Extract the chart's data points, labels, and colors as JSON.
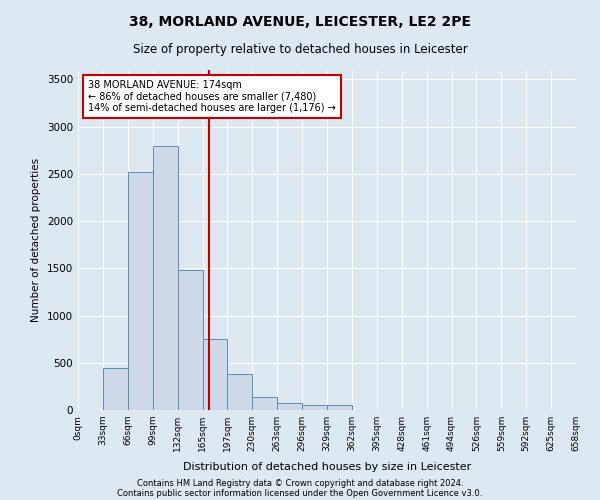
{
  "title1": "38, MORLAND AVENUE, LEICESTER, LE2 2PE",
  "title2": "Size of property relative to detached houses in Leicester",
  "xlabel": "Distribution of detached houses by size in Leicester",
  "ylabel": "Number of detached properties",
  "bar_values": [
    0,
    450,
    2520,
    2800,
    1480,
    750,
    380,
    140,
    70,
    50,
    50,
    0,
    0,
    0,
    0,
    0,
    0,
    0,
    0,
    0
  ],
  "bar_labels": [
    "0sqm",
    "33sqm",
    "66sqm",
    "99sqm",
    "132sqm",
    "165sqm",
    "197sqm",
    "230sqm",
    "263sqm",
    "296sqm",
    "329sqm",
    "362sqm",
    "395sqm",
    "428sqm",
    "461sqm",
    "494sqm",
    "526sqm",
    "559sqm",
    "592sqm",
    "625sqm",
    "658sqm"
  ],
  "bar_color": "#cdd9e8",
  "bar_edge_color": "#5b8db8",
  "vline_x": 5.27,
  "vline_color": "#c00000",
  "annotation_text": "38 MORLAND AVENUE: 174sqm\n← 86% of detached houses are smaller (7,480)\n14% of semi-detached houses are larger (1,176) →",
  "annotation_box_color": "#c00000",
  "ylim": [
    0,
    3600
  ],
  "yticks": [
    0,
    500,
    1000,
    1500,
    2000,
    2500,
    3000,
    3500
  ],
  "footer1": "Contains HM Land Registry data © Crown copyright and database right 2024.",
  "footer2": "Contains public sector information licensed under the Open Government Licence v3.0.",
  "bg_color": "#dde8f0",
  "plot_bg_color": "#dde8f0",
  "grid_color": "#ffffff"
}
